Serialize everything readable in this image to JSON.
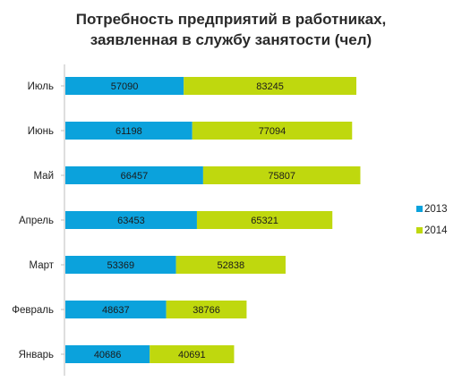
{
  "chart_data": {
    "type": "bar",
    "orientation": "horizontal",
    "stacked": true,
    "title_lines": [
      "Потребность предприятий в работниках,",
      "заявленная в службу занятости (чел)"
    ],
    "categories": [
      "Июль",
      "Июнь",
      "Май",
      "Апрель",
      "Март",
      "Февраль",
      "Январь"
    ],
    "series": [
      {
        "name": "2013",
        "color": "#0ba2dc",
        "values": [
          57090,
          61198,
          66457,
          63453,
          53369,
          48637,
          40686
        ]
      },
      {
        "name": "2014",
        "color": "#bfd80e",
        "values": [
          83245,
          77094,
          75807,
          65321,
          52838,
          38766,
          40691
        ]
      }
    ],
    "legend_position": "right",
    "grid": false
  }
}
